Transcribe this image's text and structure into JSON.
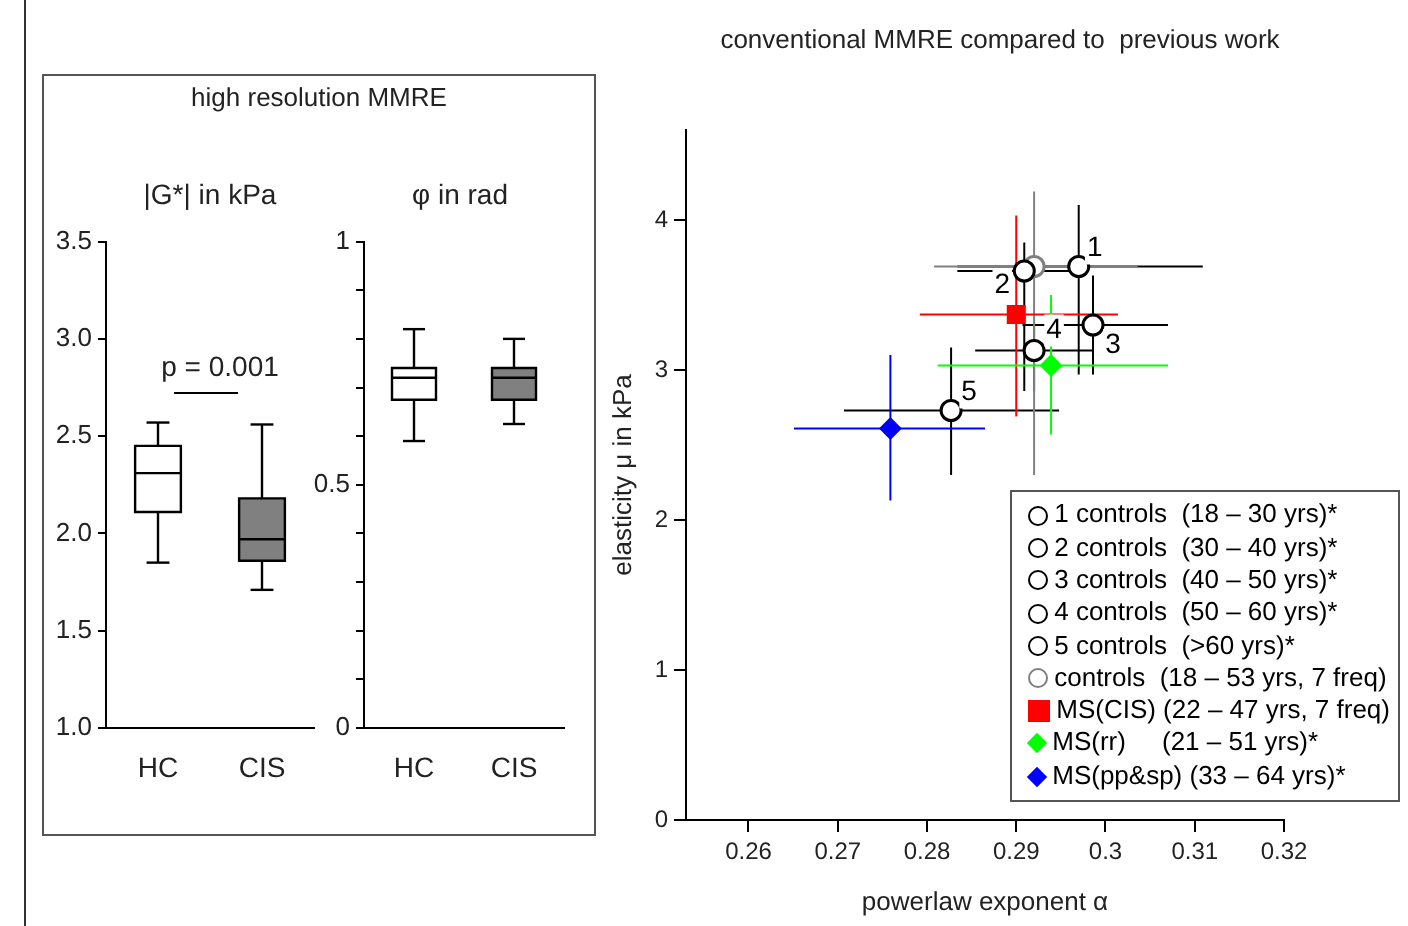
{
  "chart_data": [
    {
      "type": "box",
      "title": "high resolution MMRE",
      "subtitle": "|G*| in kPa",
      "categories": [
        "HC",
        "CIS"
      ],
      "colors": [
        "#ffffff",
        "#808080"
      ],
      "boxes": [
        {
          "low": 1.85,
          "q1": 2.11,
          "median": 2.31,
          "q3": 2.45,
          "high": 2.57
        },
        {
          "low": 1.71,
          "q1": 1.86,
          "median": 1.97,
          "q3": 2.18,
          "high": 2.56
        }
      ],
      "ylim": [
        1,
        3.5
      ],
      "yticks": [
        {
          "value": 1,
          "label": "1.0"
        },
        1.5,
        {
          "value": 2,
          "label": "2.0"
        },
        2.5,
        {
          "value": 3,
          "label": "3.0"
        },
        3.5
      ],
      "annotations": [
        "p = 0.001"
      ],
      "grid": false,
      "legend": false
    },
    {
      "type": "box",
      "title": "φ in rad",
      "categories": [
        "HC",
        "CIS"
      ],
      "colors": [
        "#ffffff",
        "#808080"
      ],
      "boxes": [
        {
          "low": 0.59,
          "q1": 0.675,
          "median": 0.72,
          "q3": 0.74,
          "high": 0.82
        },
        {
          "low": 0.625,
          "q1": 0.675,
          "median": 0.72,
          "q3": 0.74,
          "high": 0.8
        }
      ],
      "ylim": [
        0,
        1
      ],
      "yticks": [
        0,
        {
          "value": 0.1,
          "label": null
        },
        {
          "value": 0.2,
          "label": null
        },
        {
          "value": 0.3,
          "label": null
        },
        {
          "value": 0.4,
          "label": null
        },
        0.5,
        {
          "value": 0.6,
          "label": null
        },
        {
          "value": 0.7,
          "label": null
        },
        {
          "value": 0.8,
          "label": null
        },
        {
          "value": 0.9,
          "label": null
        },
        1
      ],
      "grid": false,
      "legend": false
    },
    {
      "type": "scatter",
      "title": "conventional MMRE compared to  previous work",
      "xlabel": "powerlaw exponent α",
      "ylabel": "elasticity μ in kPa",
      "xlim": [
        0.253,
        0.32
      ],
      "xticks": [
        0.26,
        0.27,
        0.28,
        0.29,
        0.3,
        0.31,
        0.32
      ],
      "ylim": [
        0,
        4.6
      ],
      "yticks": [
        0,
        1,
        2,
        3,
        4
      ],
      "grid": false,
      "legend": "bottom right",
      "series": [
        {
          "name": "1 controls  (18 – 30 yrs)*",
          "color": "#000000",
          "marker": "circle",
          "x": [
            0.297
          ],
          "values": [
            3.69
          ],
          "xerrors": [
            [
              0.2834,
              0.3109
            ]
          ],
          "errors": [
            [
              2.97,
              4.1
            ]
          ]
        },
        {
          "name": "2 controls  (30 – 40 yrs)*",
          "color": "#000000",
          "marker": "circle",
          "x": [
            0.2909
          ],
          "values": [
            3.66
          ],
          "xerrors": [
            [
              0.2834,
              0.297
            ]
          ],
          "errors": [
            [
              2.86,
              3.85
            ]
          ]
        },
        {
          "name": "3 controls  (40 – 50 yrs)*",
          "color": "#000000",
          "marker": "circle",
          "x": [
            0.2986
          ],
          "values": [
            3.3
          ],
          "xerrors": [
            [
              0.2907,
              0.307
            ]
          ],
          "errors": [
            [
              2.97,
              3.63
            ]
          ]
        },
        {
          "name": "4 controls  (50 – 60 yrs)*",
          "color": "#000000",
          "marker": "circle",
          "x": [
            0.292
          ],
          "values": [
            3.13
          ],
          "xerrors": [
            [
              0.2854,
              0.2986
            ]
          ],
          "errors": [
            [
              2.86,
              3.31
            ]
          ]
        },
        {
          "name": "5 controls  (>60 yrs)*",
          "color": "#000000",
          "marker": "circle",
          "x": [
            0.2827
          ],
          "values": [
            2.73
          ],
          "xerrors": [
            [
              0.2707,
              0.2948
            ]
          ],
          "errors": [
            [
              2.3,
              3.15
            ]
          ]
        },
        {
          "name": "controls  (18 – 53 yrs, 7 freq)",
          "color": "#808080",
          "marker": "circle",
          "x": [
            0.292
          ],
          "values": [
            3.69
          ],
          "xerrors": [
            [
              0.2808,
              0.3036
            ]
          ],
          "errors": [
            [
              2.3,
              4.19
            ]
          ]
        },
        {
          "name": "MS(CIS) (22 – 47 yrs, 7 freq)",
          "color": "#ff0000",
          "marker": "square",
          "x": [
            0.29
          ],
          "values": [
            3.37
          ],
          "xerrors": [
            [
              0.2792,
              0.3014
            ]
          ],
          "errors": [
            [
              2.69,
              4.03
            ]
          ]
        },
        {
          "name": "MS(rr)     (21 – 51 yrs)*",
          "color": "#00ff00",
          "marker": "diamond",
          "x": [
            0.2939
          ],
          "values": [
            3.03
          ],
          "xerrors": [
            [
              0.2812,
              0.307
            ]
          ],
          "errors": [
            [
              2.57,
              3.5
            ]
          ]
        },
        {
          "name": "MS(pp&sp) (33 – 64 yrs)*",
          "color": "#0000ff",
          "marker": "diamond",
          "x": [
            0.2759
          ],
          "values": [
            2.61
          ],
          "xerrors": [
            [
              0.2651,
              0.2865
            ]
          ],
          "errors": [
            [
              2.13,
              3.1
            ]
          ]
        }
      ],
      "annotations": [
        {
          "text": "1",
          "x": 0.297,
          "y": 3.69
        },
        {
          "text": "2",
          "x": 0.2909,
          "y": 3.66
        },
        {
          "text": "3",
          "x": 0.2986,
          "y": 3.3
        },
        {
          "text": "4",
          "x": 0.292,
          "y": 3.13
        },
        {
          "text": "5",
          "x": 0.2827,
          "y": 2.73
        }
      ]
    }
  ]
}
